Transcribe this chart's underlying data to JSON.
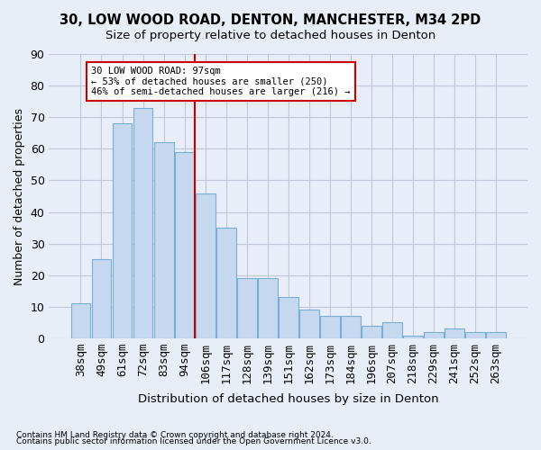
{
  "title_line1": "30, LOW WOOD ROAD, DENTON, MANCHESTER, M34 2PD",
  "title_line2": "Size of property relative to detached houses in Denton",
  "xlabel": "Distribution of detached houses by size in Denton",
  "ylabel": "Number of detached properties",
  "footnote1": "Contains HM Land Registry data © Crown copyright and database right 2024.",
  "footnote2": "Contains public sector information licensed under the Open Government Licence v3.0.",
  "bar_labels": [
    "38sqm",
    "49sqm",
    "61sqm",
    "72sqm",
    "83sqm",
    "94sqm",
    "106sqm",
    "117sqm",
    "128sqm",
    "139sqm",
    "151sqm",
    "162sqm",
    "173sqm",
    "184sqm",
    "196sqm",
    "207sqm",
    "218sqm",
    "229sqm",
    "241sqm",
    "252sqm",
    "263sqm"
  ],
  "bar_values": [
    11,
    25,
    68,
    73,
    62,
    59,
    46,
    35,
    19,
    19,
    13,
    9,
    7,
    7,
    4,
    5,
    1,
    2,
    3,
    2,
    2
  ],
  "bar_color": "#c5d8f0",
  "bar_edge_color": "#7aadd4",
  "grid_color": "#c0c8d8",
  "background_color": "#e8eef8",
  "vline_x": 5.5,
  "vline_color": "#cc0000",
  "annotation_text": "30 LOW WOOD ROAD: 97sqm\n← 53% of detached houses are smaller (250)\n46% of semi-detached houses are larger (216) →",
  "annotation_box_color": "#ffffff",
  "annotation_box_edge": "#cc0000",
  "ylim": [
    0,
    90
  ],
  "yticks": [
    0,
    10,
    20,
    30,
    40,
    50,
    60,
    70,
    80,
    90
  ]
}
